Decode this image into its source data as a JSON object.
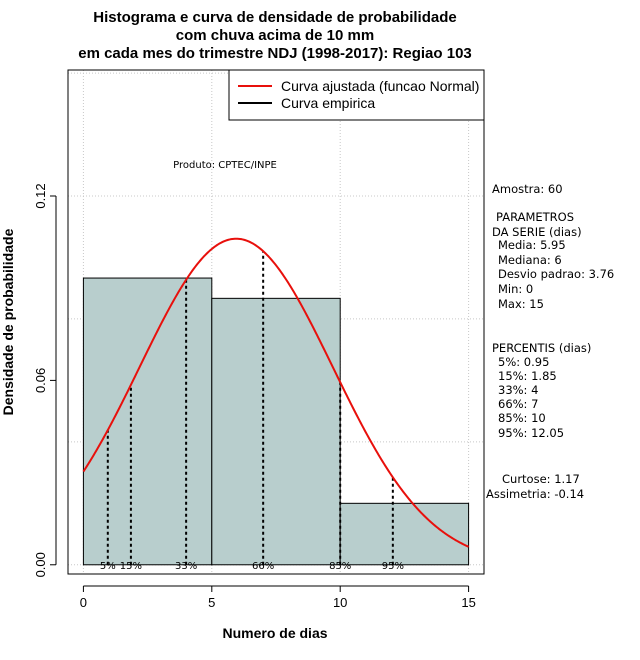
{
  "chart_data": {
    "type": "bar",
    "title_lines": [
      "Histograma e curva de densidade de probabilidade",
      "com chuva acima de 10 mm",
      "em cada mes do trimestre NDJ (1998-2017): Regiao 103"
    ],
    "xlabel": "Numero de dias",
    "ylabel": "Densidade de probabilidade",
    "xlim": [
      -0.6,
      15.6
    ],
    "ylim": [
      -0.003,
      0.161
    ],
    "x_ticks": [
      0,
      5,
      10,
      15
    ],
    "y_ticks": [
      0.0,
      0.06,
      0.12
    ],
    "y_tick_labels": [
      "0.00",
      "0.06",
      "0.12"
    ],
    "grid": true,
    "bins": [
      {
        "from": 0,
        "to": 5,
        "density": 0.0933
      },
      {
        "from": 5,
        "to": 10,
        "density": 0.0867
      },
      {
        "from": 10,
        "to": 15,
        "density": 0.02
      }
    ],
    "bar_color": "#b8cecd",
    "fitted_curve": {
      "name": "Curva ajustada (funcao Normal)",
      "mean": 5.95,
      "sd": 3.76,
      "color": "#e8100c"
    },
    "empirical_curve": {
      "name": "Curva empirica",
      "color": "#000000"
    },
    "legend_position": "top-right",
    "percentile_lines": [
      {
        "label": "5%",
        "x": 0.95
      },
      {
        "label": "15%",
        "x": 1.85
      },
      {
        "label": "33%",
        "x": 4
      },
      {
        "label": "66%",
        "x": 7
      },
      {
        "label": "85%",
        "x": 10
      },
      {
        "label": "95%",
        "x": 12.05
      }
    ],
    "annotation": "Produto: CPTEC/INPE"
  },
  "stats": {
    "amostra": "Amostra: 60",
    "param_title_1": "PARAMETROS",
    "param_title_2": "DA SERIE (dias)",
    "params": [
      "Media: 5.95",
      "Mediana: 6",
      "Desvio padrao: 3.76",
      "Min: 0",
      "Max: 15"
    ],
    "percentis_title": "PERCENTIS (dias)",
    "percentis": [
      "5%: 0.95",
      "15%: 1.85",
      "33%: 4",
      "66%: 7",
      "85%: 10",
      "95%: 12.05"
    ],
    "curtose": "Curtose: 1.17",
    "assimetria": "Assimetria: -0.14"
  }
}
